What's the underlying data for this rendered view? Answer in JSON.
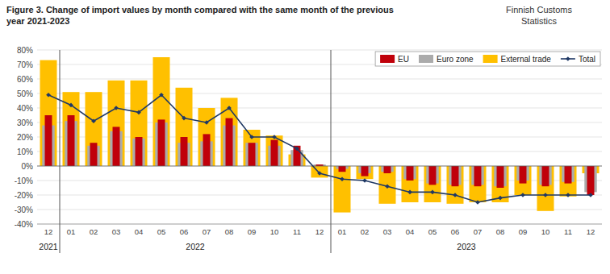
{
  "chart_data": {
    "type": "bar",
    "title": "Figure 3. Change of import values by month compared with the same month of the previous\nyear 2021-2023",
    "subtitle": "Finnish Customs\nStatistics",
    "categories": [
      "12",
      "01",
      "02",
      "03",
      "04",
      "05",
      "06",
      "07",
      "08",
      "09",
      "10",
      "11",
      "12",
      "01",
      "02",
      "03",
      "04",
      "05",
      "06",
      "07",
      "08",
      "09",
      "10",
      "11",
      "12"
    ],
    "series": [
      {
        "name": "EU",
        "type": "bar",
        "color": "#c0000a",
        "values": [
          35,
          35,
          16,
          27,
          20,
          32,
          20,
          22,
          33,
          16,
          18,
          14,
          1,
          -4,
          -7,
          -5,
          -10,
          -13,
          -14,
          -14,
          -15,
          -12,
          -14,
          -12,
          -20
        ]
      },
      {
        "name": "Euro zone",
        "type": "bar",
        "color": "#ababab",
        "values": [
          28,
          31,
          14,
          24,
          19,
          30,
          16,
          17,
          28,
          16,
          14,
          11,
          1,
          -2,
          -5,
          -4,
          -9,
          -12,
          -13,
          -13,
          -14,
          -10,
          -13,
          -11,
          -18
        ]
      },
      {
        "name": "External trade",
        "type": "bar",
        "color": "#ffc000",
        "values": [
          73,
          51,
          51,
          59,
          59,
          75,
          54,
          40,
          47,
          25,
          21,
          8,
          -8,
          -32,
          -9,
          -26,
          -25,
          -25,
          -26,
          -25,
          -25,
          -20,
          -31,
          -21,
          -5
        ]
      },
      {
        "name": "Total",
        "type": "line",
        "color": "#1f3864",
        "marker": "diamond",
        "values": [
          49,
          42,
          31,
          40,
          37,
          49,
          33,
          30,
          40,
          20,
          20,
          12,
          -5,
          -9,
          -10,
          -14,
          -18,
          -18,
          -20,
          -25,
          -22,
          -20,
          -20,
          -20,
          -20
        ]
      }
    ],
    "annotations": [
      {
        "text": "2021",
        "span": [
          0,
          0
        ]
      },
      {
        "text": "2022",
        "span": [
          1,
          12
        ]
      },
      {
        "text": "2023",
        "span": [
          13,
          24
        ]
      }
    ],
    "ylim": [
      -40,
      80
    ],
    "yticks": [
      {
        "value": -40,
        "label": "-40%"
      },
      {
        "value": -30,
        "label": "-30%"
      },
      {
        "value": -20,
        "label": "-20%"
      },
      {
        "value": -10,
        "label": "-10%"
      },
      {
        "value": 0,
        "label": "0%"
      },
      {
        "value": 10,
        "label": "10%"
      },
      {
        "value": 20,
        "label": "20%"
      },
      {
        "value": 30,
        "label": "30%"
      },
      {
        "value": 40,
        "label": "40%"
      },
      {
        "value": 50,
        "label": "50%"
      },
      {
        "value": 60,
        "label": "60%"
      },
      {
        "value": 70,
        "label": "70%"
      },
      {
        "value": 80,
        "label": "80%"
      }
    ],
    "grid": true,
    "legend": "upper right"
  }
}
